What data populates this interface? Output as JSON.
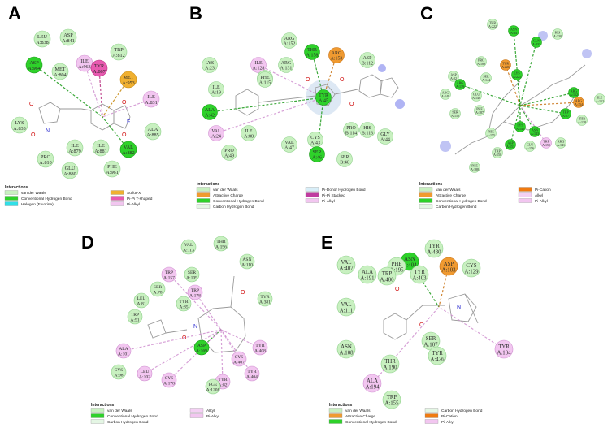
{
  "colors": {
    "vdw": "#c8f0c0",
    "vdw_stroke": "#8ed08a",
    "hbond": "#2ed12a",
    "hbond_stroke": "#1a9a18",
    "carbon_h": "#e4f6e4",
    "carbon_h_stroke": "#a8d8a8",
    "halogen": "#2fe0e8",
    "sulfur": "#f0b030",
    "sulfur_stroke": "#c88a10",
    "pipi_t": "#e85ab0",
    "pipi_t_stroke": "#b83080",
    "pialkyl": "#f2c6f0",
    "pialkyl_stroke": "#d090d0",
    "attractive": "#f09a30",
    "attractive_stroke": "#c87010",
    "donor": "#d8eef8",
    "pipi_stacked": "#c03ca0",
    "pication": "#f07a10",
    "alkyl": "#f4d0f4"
  },
  "legend_title": "Interactions",
  "panels": [
    {
      "id": "A",
      "label": "A",
      "residues": [
        {
          "name": "LEU",
          "num": "A:838",
          "type": "vdw"
        },
        {
          "name": "ASP",
          "num": "A:841",
          "type": "vdw"
        },
        {
          "name": "ASP",
          "num": "A:964",
          "type": "hbond"
        },
        {
          "name": "MET",
          "num": "A:804",
          "type": "vdw"
        },
        {
          "name": "ILE",
          "num": "A:963",
          "type": "pialkyl"
        },
        {
          "name": "TYR",
          "num": "A:867",
          "type": "pipi_t"
        },
        {
          "name": "TRP",
          "num": "A:812",
          "type": "vdw"
        },
        {
          "name": "MET",
          "num": "A:953",
          "type": "sulfur"
        },
        {
          "name": "ILE",
          "num": "A:831",
          "type": "pialkyl"
        },
        {
          "name": "LYS",
          "num": "A:833",
          "type": "vdw"
        },
        {
          "name": "ALA",
          "num": "A:885",
          "type": "vdw"
        },
        {
          "name": "ILE",
          "num": "A:879",
          "type": "vdw"
        },
        {
          "name": "ILE",
          "num": "A:881",
          "type": "vdw"
        },
        {
          "name": "VAL",
          "num": "A:882",
          "type": "hbond"
        },
        {
          "name": "PHE",
          "num": "A:961",
          "type": "vdw"
        },
        {
          "name": "PRO",
          "num": "A:810",
          "type": "vdw"
        },
        {
          "name": "GLU",
          "num": "A:880",
          "type": "vdw"
        }
      ],
      "legend": [
        {
          "label": "van der Waals",
          "type": "vdw"
        },
        {
          "label": "Conventional Hydrogen Bond",
          "type": "hbond"
        },
        {
          "label": "Halogen (Fluorine)",
          "type": "halogen"
        },
        {
          "label": "Sulfur-X",
          "type": "sulfur"
        },
        {
          "label": "Pi-Pi T-shaped",
          "type": "pipi_t"
        },
        {
          "label": "Pi-Alkyl",
          "type": "pialkyl"
        }
      ]
    },
    {
      "id": "B",
      "label": "B",
      "residues": [
        {
          "name": "ARG",
          "num": "A:152",
          "type": "vdw"
        },
        {
          "name": "THR",
          "num": "A:158",
          "type": "hbond"
        },
        {
          "name": "ARG",
          "num": "A:153",
          "type": "attractive"
        },
        {
          "name": "ILE",
          "num": "A:128",
          "type": "pialkyl"
        },
        {
          "name": "LYS",
          "num": "A:23",
          "type": "vdw"
        },
        {
          "name": "PRO",
          "num": "A:114",
          "type": "vdw"
        },
        {
          "name": "ARG",
          "num": "A:131",
          "type": "vdw"
        },
        {
          "name": "ASP",
          "num": "B:112",
          "type": "vdw"
        },
        {
          "name": "PHE",
          "num": "A:115",
          "type": "vdw"
        },
        {
          "name": "ILE",
          "num": "A:19",
          "type": "vdw"
        },
        {
          "name": "TYR",
          "num": "A:45",
          "type": "hbond"
        },
        {
          "name": "ALA",
          "num": "A:42",
          "type": "hbond"
        },
        {
          "name": "VAL",
          "num": "A:24",
          "type": "pialkyl"
        },
        {
          "name": "ILE",
          "num": "A:88",
          "type": "vdw"
        },
        {
          "name": "VAL",
          "num": "A:47",
          "type": "vdw"
        },
        {
          "name": "CYS",
          "num": "A:43",
          "type": "vdw"
        },
        {
          "name": "PRO",
          "num": "B:114",
          "type": "vdw"
        },
        {
          "name": "HIS",
          "num": "B:113",
          "type": "vdw"
        },
        {
          "name": "GLY",
          "num": "A:44",
          "type": "vdw"
        },
        {
          "name": "PRO",
          "num": "A:49",
          "type": "vdw"
        },
        {
          "name": "SER",
          "num": "A:46",
          "type": "hbond"
        },
        {
          "name": "SER",
          "num": "B:46",
          "type": "vdw"
        }
      ],
      "legend": [
        {
          "label": "van der Waals",
          "type": "vdw"
        },
        {
          "label": "Attractive Charge",
          "type": "attractive"
        },
        {
          "label": "Conventional Hydrogen Bond",
          "type": "hbond"
        },
        {
          "label": "Carbon Hydrogen Bond",
          "type": "carbon_h"
        },
        {
          "label": "Pi-Donor Hydrogen Bond",
          "type": "donor"
        },
        {
          "label": "Pi-Pi Stacked",
          "type": "pipi_stacked"
        },
        {
          "label": "Pi-Alkyl",
          "type": "pialkyl"
        }
      ]
    },
    {
      "id": "C",
      "label": "C",
      "residues": [
        {
          "name": "THR",
          "num": "A:222",
          "type": "vdw"
        },
        {
          "name": "ASN",
          "num": "A:34",
          "type": "hbond"
        },
        {
          "name": "HIS",
          "num": "A:330",
          "type": "vdw"
        },
        {
          "name": "GLN",
          "num": "A:233",
          "type": "hbond"
        },
        {
          "name": "PRO",
          "num": "A:189",
          "type": "vdw"
        },
        {
          "name": "TYR",
          "num": "A:226",
          "type": "attractive"
        },
        {
          "name": "ASP",
          "num": "A:22",
          "type": "vdw"
        },
        {
          "name": "SER",
          "num": "A:144",
          "type": "vdw"
        },
        {
          "name": "ARG",
          "num": "A:149",
          "type": "vdw"
        },
        {
          "name": "LYS",
          "num": "A:225",
          "type": "hbond"
        },
        {
          "name": "ARG",
          "num": "A:139",
          "type": "hbond"
        },
        {
          "name": "GLU",
          "num": "A:148",
          "type": "vdw"
        },
        {
          "name": "SER",
          "num": "A:150",
          "type": "vdw"
        },
        {
          "name": "PHE",
          "num": "A:187",
          "type": "vdw"
        },
        {
          "name": "ARG",
          "num": "A:152",
          "type": "hbond"
        },
        {
          "name": "ARG",
          "num": "A:154",
          "type": "attractive"
        },
        {
          "name": "TRP",
          "num": "A:27",
          "type": "hbond"
        },
        {
          "name": "THR",
          "num": "A:138",
          "type": "vdw"
        },
        {
          "name": "ILE",
          "num": "A:152",
          "type": "vdw"
        },
        {
          "name": "LYS",
          "num": "A:145",
          "type": "hbond"
        },
        {
          "name": "PHE",
          "num": "A:155",
          "type": "vdw"
        },
        {
          "name": "ASN",
          "num": "A:143",
          "type": "hbond"
        },
        {
          "name": "ASP",
          "num": "A:153",
          "type": "hbond"
        },
        {
          "name": "GLU",
          "num": "A:156",
          "type": "vdw"
        },
        {
          "name": "TRP",
          "num": "A:159",
          "type": "pialkyl"
        },
        {
          "name": "ARG",
          "num": "A:141",
          "type": "vdw"
        },
        {
          "name": "TRP",
          "num": "A:150",
          "type": "vdw"
        },
        {
          "name": "PHE",
          "num": "A:188",
          "type": "vdw"
        }
      ],
      "legend": [
        {
          "label": "van der Waals",
          "type": "vdw"
        },
        {
          "label": "Attractive Charge",
          "type": "attractive"
        },
        {
          "label": "Conventional Hydrogen Bond",
          "type": "hbond"
        },
        {
          "label": "Carbon Hydrogen Bond",
          "type": "carbon_h"
        },
        {
          "label": "Pi-Cation",
          "type": "pication"
        },
        {
          "label": "Alkyl",
          "type": "alkyl"
        },
        {
          "label": "Pi-Alkyl",
          "type": "pialkyl"
        }
      ]
    },
    {
      "id": "D",
      "label": "D",
      "residues": [
        {
          "name": "VAL",
          "num": "A:113",
          "type": "vdw"
        },
        {
          "name": "THR",
          "num": "A:196",
          "type": "vdw"
        },
        {
          "name": "ASN",
          "num": "A:110",
          "type": "vdw"
        },
        {
          "name": "TRP",
          "num": "A:157",
          "type": "pialkyl"
        },
        {
          "name": "SER",
          "num": "A:109",
          "type": "vdw"
        },
        {
          "name": "SER",
          "num": "A:78",
          "type": "vdw"
        },
        {
          "name": "TRP",
          "num": "A:178",
          "type": "pialkyl"
        },
        {
          "name": "LEU",
          "num": "A:81",
          "type": "vdw"
        },
        {
          "name": "TYR",
          "num": "A:85",
          "type": "vdw"
        },
        {
          "name": "TYR",
          "num": "A:381",
          "type": "vdw"
        },
        {
          "name": "TRP",
          "num": "A:91",
          "type": "vdw"
        },
        {
          "name": "TYR",
          "num": "A:408",
          "type": "pialkyl"
        },
        {
          "name": "ALA",
          "num": "A:101",
          "type": "pialkyl"
        },
        {
          "name": "ASP",
          "num": "A:169",
          "type": "hbond"
        },
        {
          "name": "CYS",
          "num": "A:407",
          "type": "pialkyl"
        },
        {
          "name": "CYS",
          "num": "A:98",
          "type": "vdw"
        },
        {
          "name": "LEU",
          "num": "A:102",
          "type": "pialkyl"
        },
        {
          "name": "CYS",
          "num": "A:178",
          "type": "pialkyl"
        },
        {
          "name": "TYR",
          "num": "A:82",
          "type": "pialkyl"
        },
        {
          "name": "TYR",
          "num": "A:404",
          "type": "pialkyl"
        },
        {
          "name": "PGE",
          "num": "A:1208",
          "type": "vdw"
        }
      ],
      "legend": [
        {
          "label": "van der Waals",
          "type": "vdw"
        },
        {
          "label": "Conventional Hydrogen Bond",
          "type": "hbond"
        },
        {
          "label": "Carbon Hydrogen Bond",
          "type": "carbon_h"
        },
        {
          "label": "Alkyl",
          "type": "alkyl"
        },
        {
          "label": "Pi-Alkyl",
          "type": "pialkyl"
        }
      ]
    },
    {
      "id": "E",
      "label": "E",
      "residues": [
        {
          "name": "TYR",
          "num": "A:430",
          "type": "vdw"
        },
        {
          "name": "ASN",
          "num": "A:404",
          "type": "hbond"
        },
        {
          "name": "VAL",
          "num": "A:407",
          "type": "vdw"
        },
        {
          "name": "PHE",
          "num": "A:195",
          "type": "vdw"
        },
        {
          "name": "ASP",
          "num": "A:103",
          "type": "attractive"
        },
        {
          "name": "CYS",
          "num": "A:129",
          "type": "vdw"
        },
        {
          "name": "ALA",
          "num": "A:191",
          "type": "vdw"
        },
        {
          "name": "TRP",
          "num": "A:400",
          "type": "vdw"
        },
        {
          "name": "TYR",
          "num": "A:403",
          "type": "vdw"
        },
        {
          "name": "VAL",
          "num": "A:111",
          "type": "vdw"
        },
        {
          "name": "SER",
          "num": "A:107",
          "type": "vdw"
        },
        {
          "name": "TYR",
          "num": "A:426",
          "type": "vdw"
        },
        {
          "name": "TYR",
          "num": "A:104",
          "type": "pialkyl"
        },
        {
          "name": "ASN",
          "num": "A:108",
          "type": "vdw"
        },
        {
          "name": "THR",
          "num": "A:190",
          "type": "vdw"
        },
        {
          "name": "ALA",
          "num": "A:194",
          "type": "pialkyl"
        },
        {
          "name": "TRP",
          "num": "A:155",
          "type": "vdw"
        }
      ],
      "legend": [
        {
          "label": "van der Waals",
          "type": "vdw"
        },
        {
          "label": "Attractive Charge",
          "type": "attractive"
        },
        {
          "label": "Conventional Hydrogen Bond",
          "type": "hbond"
        },
        {
          "label": "Carbon Hydrogen Bond",
          "type": "carbon_h"
        },
        {
          "label": "Pi-Cation",
          "type": "pication"
        },
        {
          "label": "Pi-Alkyl",
          "type": "pialkyl"
        }
      ]
    }
  ]
}
